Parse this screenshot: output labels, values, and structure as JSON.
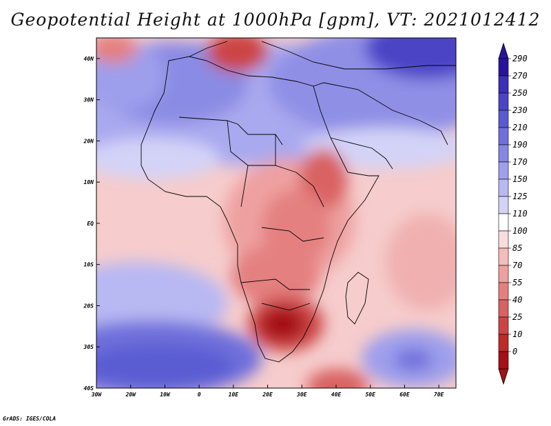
{
  "title": "Geopotential Height at 1000hPa [gpm], VT: 2021012412",
  "credit": "GrADS: IGES/COLA",
  "map": {
    "region": "Africa",
    "lat_range": [
      -40,
      45
    ],
    "lon_range": [
      -30,
      75
    ],
    "lat_ticks": [
      "40N",
      "30N",
      "20N",
      "10N",
      "EQ",
      "10S",
      "20S",
      "30S",
      "40S"
    ],
    "lon_ticks": [
      "30W",
      "20W",
      "10W",
      "0",
      "10E",
      "20E",
      "30E",
      "40E",
      "50E",
      "60E",
      "70E"
    ]
  },
  "colorbar": {
    "labels": [
      "290",
      "270",
      "250",
      "230",
      "210",
      "190",
      "170",
      "150",
      "125",
      "110",
      "100",
      "85",
      "70",
      "55",
      "40",
      "25",
      "10",
      "0"
    ],
    "colors": [
      "#2a139c",
      "#3b2fb5",
      "#4b45c6",
      "#5a5bd2",
      "#6f70dc",
      "#8686e4",
      "#9e9fec",
      "#b8b8f3",
      "#d3d3f8",
      "#ffffff",
      "#fadcdc",
      "#f5bcbc",
      "#eea0a0",
      "#e48080",
      "#d96262",
      "#cc4545",
      "#bd2a2a",
      "#a50f15"
    ]
  }
}
